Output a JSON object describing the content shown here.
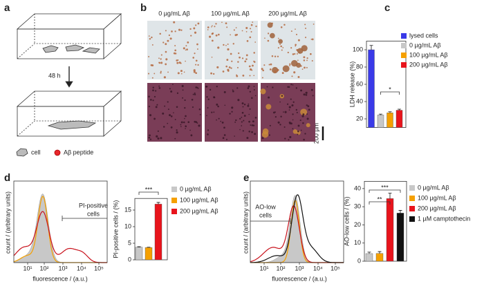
{
  "panels": {
    "a": "a",
    "b": "b",
    "c": "c",
    "d": "d",
    "e": "e"
  },
  "panel_a": {
    "time": "48 h",
    "legend": [
      "cell",
      "Aβ peptide"
    ]
  },
  "panel_b": {
    "columns": [
      "0 µg/mL Aβ",
      "100 µg/mL Aβ",
      "200 µg/mL Aβ"
    ],
    "scale": "200 µm"
  },
  "histograms": {
    "xticks": [
      "10¹",
      "10²",
      "10³",
      "10⁴",
      "10⁵"
    ],
    "xlabel": "fluorescence / (a.u.)",
    "ylabel": "count / (arbitrary units)",
    "d_gate": [
      "PI-positive",
      "cells"
    ],
    "e_gate": [
      "AO-low",
      "cells"
    ]
  },
  "chart_data": [
    {
      "type": "bar",
      "ylabel": "LDH release (%)",
      "ylim": [
        10,
        110
      ],
      "yticks": [
        20,
        40,
        60,
        80,
        100
      ],
      "series": [
        {
          "name": "lysed cells",
          "color": "#3a3ae8",
          "values": [
            100
          ],
          "errors": [
            5
          ]
        },
        {
          "name": "0 µg/mL Aβ",
          "color": "#c8c8c8",
          "values": [
            24.5
          ],
          "errors": [
            1
          ]
        },
        {
          "name": "100 µg/mL Aβ",
          "color": "#f5a000",
          "values": [
            27
          ],
          "errors": [
            1.2
          ]
        },
        {
          "name": "200 µg/mL Aβ",
          "color": "#e8141c",
          "values": [
            30
          ],
          "errors": [
            1.2
          ]
        }
      ],
      "annotations": [
        "*"
      ]
    },
    {
      "type": "bar",
      "ylabel": "PI-positive cells / (%)",
      "ylim": [
        0,
        18.5
      ],
      "yticks": [
        0,
        5,
        10,
        15
      ],
      "series": [
        {
          "name": "0 µg/mL Aβ",
          "color": "#c8c8c8",
          "values": [
            3.8
          ],
          "errors": [
            0.15
          ]
        },
        {
          "name": "100 µg/mL Aβ",
          "color": "#f5a000",
          "values": [
            3.7
          ],
          "errors": [
            0.1
          ]
        },
        {
          "name": "200 µg/mL Aβ",
          "color": "#e8141c",
          "values": [
            16.8
          ],
          "errors": [
            0.5
          ]
        }
      ],
      "annotations": [
        "***"
      ]
    },
    {
      "type": "bar",
      "ylabel": "AO-low cells / (%)",
      "ylim": [
        0,
        44
      ],
      "yticks": [
        0,
        10,
        20,
        30,
        40
      ],
      "series": [
        {
          "name": "0 µg/mL Aβ",
          "color": "#c8c8c8",
          "values": [
            4.2
          ],
          "errors": [
            0.8
          ]
        },
        {
          "name": "100 µg/mL Aβ",
          "color": "#f5a000",
          "values": [
            4.3
          ],
          "errors": [
            1
          ]
        },
        {
          "name": "200 µg/mL Aβ",
          "color": "#e8141c",
          "values": [
            34.5
          ],
          "errors": [
            3
          ]
        },
        {
          "name": "1 µM camptothecin",
          "color": "#111111",
          "values": [
            26.5
          ],
          "errors": [
            1.5
          ]
        }
      ],
      "annotations": [
        "**",
        "***"
      ]
    }
  ]
}
